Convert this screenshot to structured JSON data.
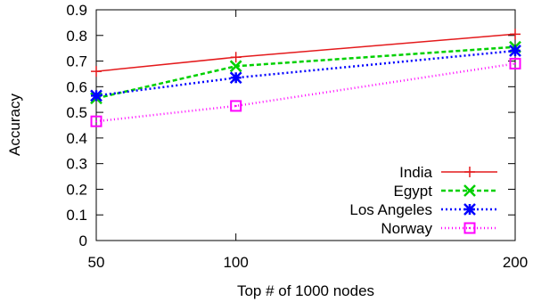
{
  "chart_data": {
    "type": "line",
    "xlabel": "Top # of 1000 nodes",
    "ylabel": "Accuracy",
    "x": [
      50,
      100,
      200
    ],
    "xlim": [
      50,
      200
    ],
    "ylim": [
      0,
      0.9
    ],
    "xticks": [
      "50",
      "100",
      "200"
    ],
    "yticks": [
      "0",
      "0.1",
      "0.2",
      "0.3",
      "0.4",
      "0.5",
      "0.6",
      "0.7",
      "0.8",
      "0.9"
    ],
    "grid": false,
    "legend_position": "bottom-right",
    "series": [
      {
        "name": "India",
        "values": [
          0.66,
          0.715,
          0.805
        ],
        "color": "#e41a1c",
        "dash": "",
        "marker": "plus"
      },
      {
        "name": "Egypt",
        "values": [
          0.555,
          0.68,
          0.755
        ],
        "color": "#00d000",
        "dash": "5,3",
        "marker": "x"
      },
      {
        "name": "Los Angeles",
        "values": [
          0.565,
          0.635,
          0.74
        ],
        "color": "#0000ff",
        "dash": "2,3",
        "marker": "star"
      },
      {
        "name": "Norway",
        "values": [
          0.465,
          0.525,
          0.69
        ],
        "color": "#ff00ff",
        "dash": "1,3",
        "marker": "square"
      }
    ]
  }
}
